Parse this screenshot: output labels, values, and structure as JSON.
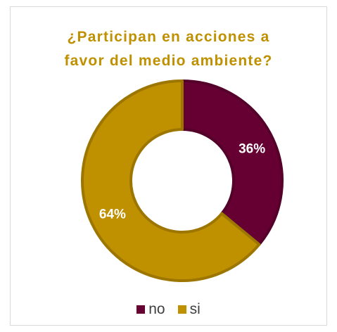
{
  "chart_data": {
    "type": "pie",
    "title_lines": [
      "¿Participan en acciones a",
      "favor del medio ambiente?"
    ],
    "categories": [
      "no",
      "si"
    ],
    "values": [
      36,
      64
    ],
    "value_labels": [
      "36%",
      "64%"
    ],
    "colors": [
      "#660033",
      "#BF9000"
    ],
    "title_color": "#BF9000",
    "label_color": "#ffffff",
    "legend_placement": "bottom",
    "donut": true
  }
}
